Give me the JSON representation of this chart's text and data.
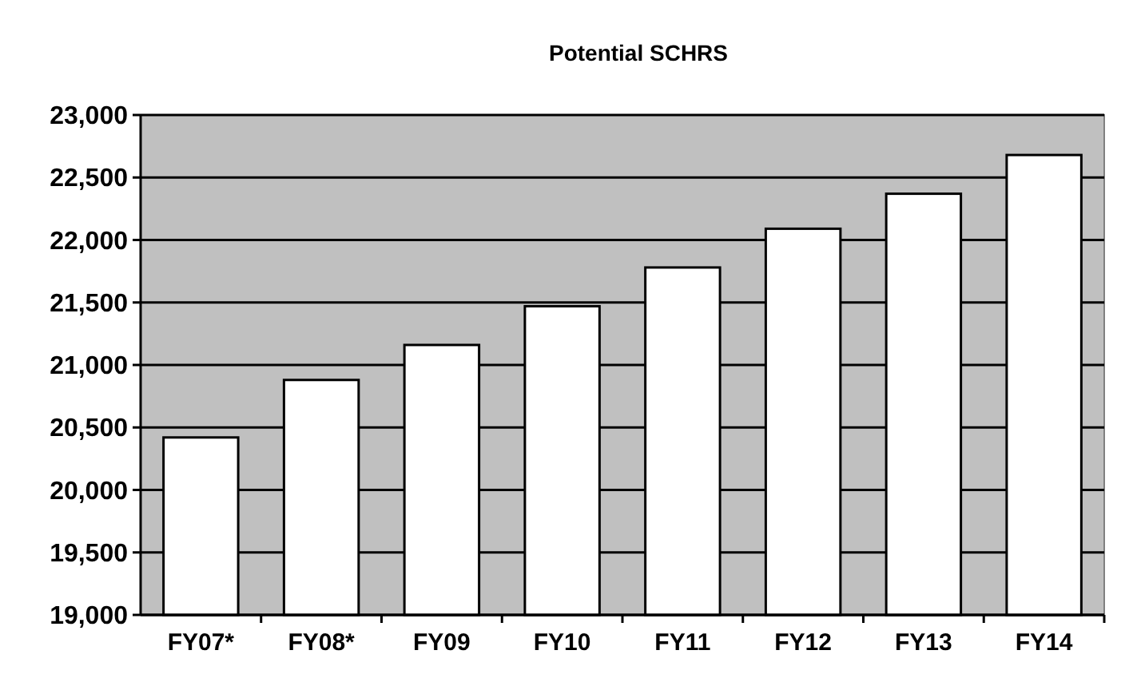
{
  "chart_data": {
    "type": "bar",
    "title": "Potential SCHRS",
    "categories": [
      "FY07*",
      "FY08*",
      "FY09",
      "FY10",
      "FY11",
      "FY12",
      "FY13",
      "FY14"
    ],
    "values": [
      20420,
      20880,
      21160,
      21470,
      21780,
      22090,
      22370,
      22680
    ],
    "color": "#ffffff",
    "ylim": [
      19000,
      23000
    ],
    "yticks": [
      {
        "value": 19000,
        "label": "19,000"
      },
      {
        "value": 19500,
        "label": "19,500"
      },
      {
        "value": 20000,
        "label": "20,000"
      },
      {
        "value": 20500,
        "label": "20,500"
      },
      {
        "value": 21000,
        "label": "21,000"
      },
      {
        "value": 21500,
        "label": "21,500"
      },
      {
        "value": 22000,
        "label": "22,000"
      },
      {
        "value": 22500,
        "label": "22,500"
      },
      {
        "value": 23000,
        "label": "23,000"
      }
    ],
    "grid": "y"
  }
}
